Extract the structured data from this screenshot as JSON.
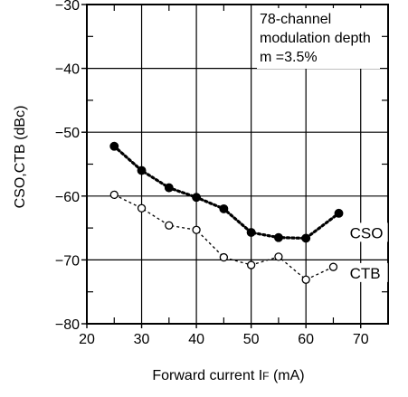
{
  "chart_data": {
    "type": "line",
    "xlabel": "Forward current I F (mA)",
    "xlabel_parts": {
      "prefix": "Forward current",
      "symbol": "I",
      "subscript": "F",
      "unit": "(mA)"
    },
    "ylabel": "CSO,CTB (dBc)",
    "xlim": [
      20,
      75
    ],
    "ylim": [
      -80,
      -30
    ],
    "xticks": [
      20,
      30,
      40,
      50,
      60,
      70
    ],
    "yticks": [
      -30,
      -40,
      -50,
      -60,
      -70,
      -80
    ],
    "xtick_labels": [
      "20",
      "30",
      "40",
      "50",
      "60",
      "70"
    ],
    "ytick_labels": [
      "−30",
      "−40",
      "−50",
      "−60",
      "−70",
      "−80"
    ],
    "grid": true,
    "annotation_lines": [
      "78-channel",
      "modulation depth",
      "m =3.5%"
    ],
    "series": [
      {
        "name": "CSO",
        "marker": "filled-circle",
        "line_style": "dotted-bold",
        "x": [
          25,
          30,
          35,
          40,
          45,
          50,
          55,
          60,
          66
        ],
        "y": [
          -52.2,
          -56,
          -58.7,
          -60.2,
          -62,
          -65.7,
          -66.5,
          -66.6,
          -62.7
        ]
      },
      {
        "name": "CTB",
        "marker": "open-circle",
        "line_style": "dotted-thin",
        "x": [
          25,
          30,
          35,
          40,
          45,
          50,
          55,
          60,
          65
        ],
        "y": [
          -59.8,
          -61.9,
          -64.6,
          -65.3,
          -69.6,
          -70.8,
          -69.5,
          -73.1,
          -71.1
        ]
      }
    ],
    "series_labels": [
      {
        "text": "CSO",
        "x": 68,
        "y": -66.6
      },
      {
        "text": "CTB",
        "x": 68,
        "y": -72.9
      }
    ],
    "colors": {
      "ink": "#000000",
      "background": "#ffffff"
    }
  }
}
